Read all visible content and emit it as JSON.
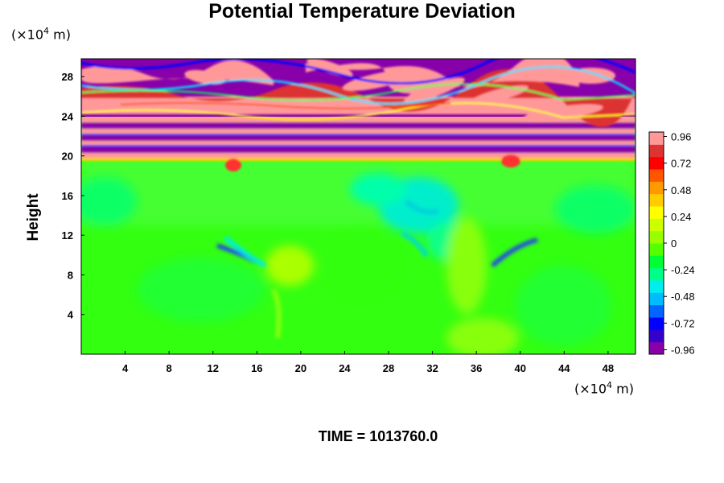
{
  "chart_data": {
    "type": "heatmap",
    "title": "Potential Temperature Deviation",
    "ylabel": "Height",
    "xlabel": "",
    "x_unit_prefix": "(×10",
    "x_unit_exp": "4",
    "x_unit_suffix": " m)",
    "y_unit_prefix": "(×10",
    "y_unit_exp": "4",
    "y_unit_suffix": " m)",
    "xlim": [
      0,
      50.5
    ],
    "ylim": [
      0,
      29.8
    ],
    "xticks": [
      4,
      8,
      12,
      16,
      20,
      24,
      28,
      32,
      36,
      40,
      44,
      48
    ],
    "yticks": [
      4,
      8,
      12,
      16,
      20,
      24,
      28
    ],
    "colorbar": {
      "ticks": [
        "0.96",
        "0.72",
        "0.48",
        "0.24",
        "0",
        "-0.24",
        "-0.48",
        "-0.72",
        "-0.96"
      ],
      "range": [
        -1.0,
        1.0
      ],
      "colors": [
        "#8800aa",
        "#3300cc",
        "#0000ff",
        "#0066ff",
        "#00bbff",
        "#00eeee",
        "#00ff88",
        "#00ff33",
        "#55ff00",
        "#99ff00",
        "#ccff00",
        "#ffff00",
        "#ffcc00",
        "#ff9900",
        "#ff5500",
        "#ff0000",
        "#dd3333",
        "#ff9999"
      ]
    },
    "annotation": "TIME = 1013760.0"
  }
}
